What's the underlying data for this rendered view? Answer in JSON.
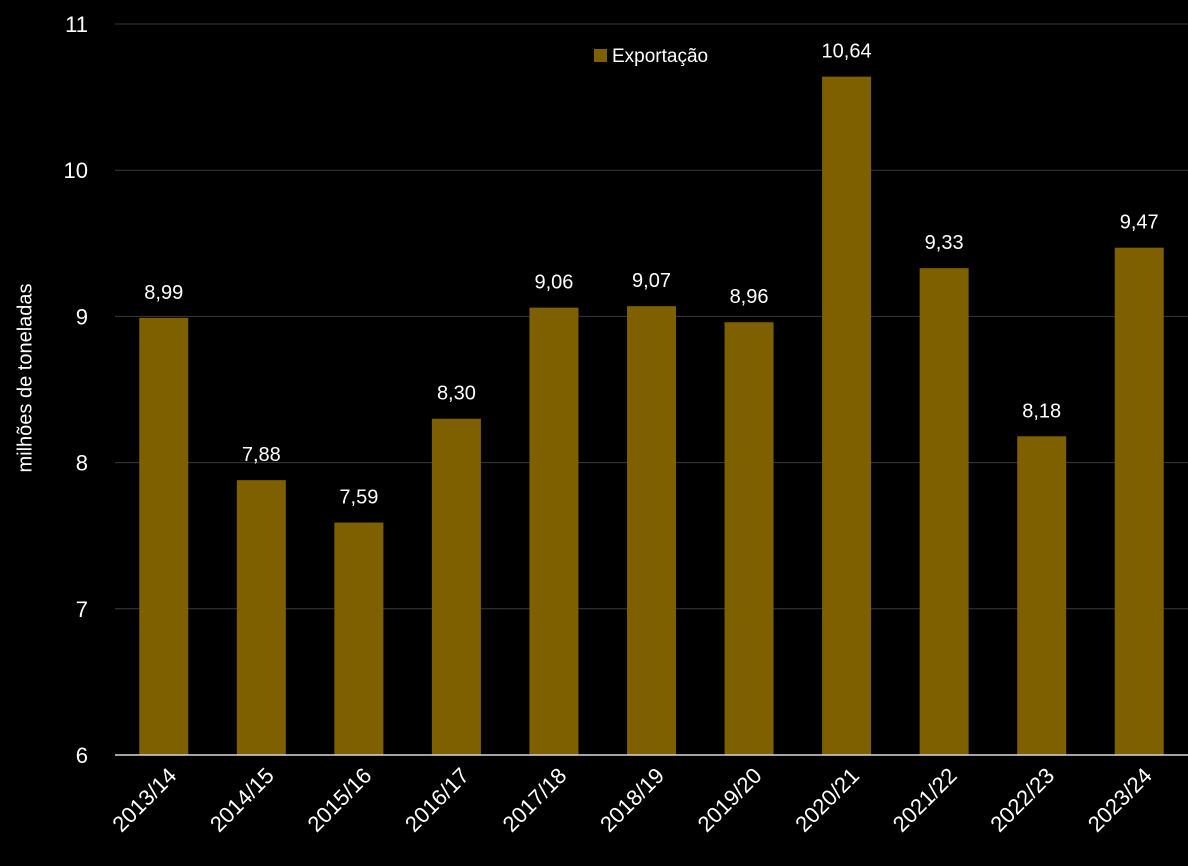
{
  "chart_data": {
    "type": "bar",
    "categories": [
      "2013/14",
      "2014/15",
      "2015/16",
      "2016/17",
      "2017/18",
      "2018/19",
      "2019/20",
      "2020/21",
      "2021/22",
      "2022/23",
      "2023/24"
    ],
    "series": [
      {
        "name": "Exportação",
        "values": [
          8.99,
          7.88,
          7.59,
          8.3,
          9.06,
          9.07,
          8.96,
          10.64,
          9.33,
          8.18,
          9.47
        ],
        "labels": [
          "8,99",
          "7,88",
          "7,59",
          "8,30",
          "9,06",
          "9,07",
          "8,96",
          "10,64",
          "9,33",
          "8,18",
          "9,47"
        ]
      }
    ],
    "ylabel": "milhões de toneladas",
    "xlabel": "",
    "ylim": [
      6,
      11
    ],
    "yticks": [
      6,
      7,
      8,
      9,
      10,
      11
    ],
    "grid": true,
    "legend_position": "top-center",
    "colors": {
      "bar": "#7F6000",
      "background": "#000000",
      "grid": "#3a3a3a",
      "text": "#ffffff",
      "axis": "#d9d9d9"
    }
  }
}
